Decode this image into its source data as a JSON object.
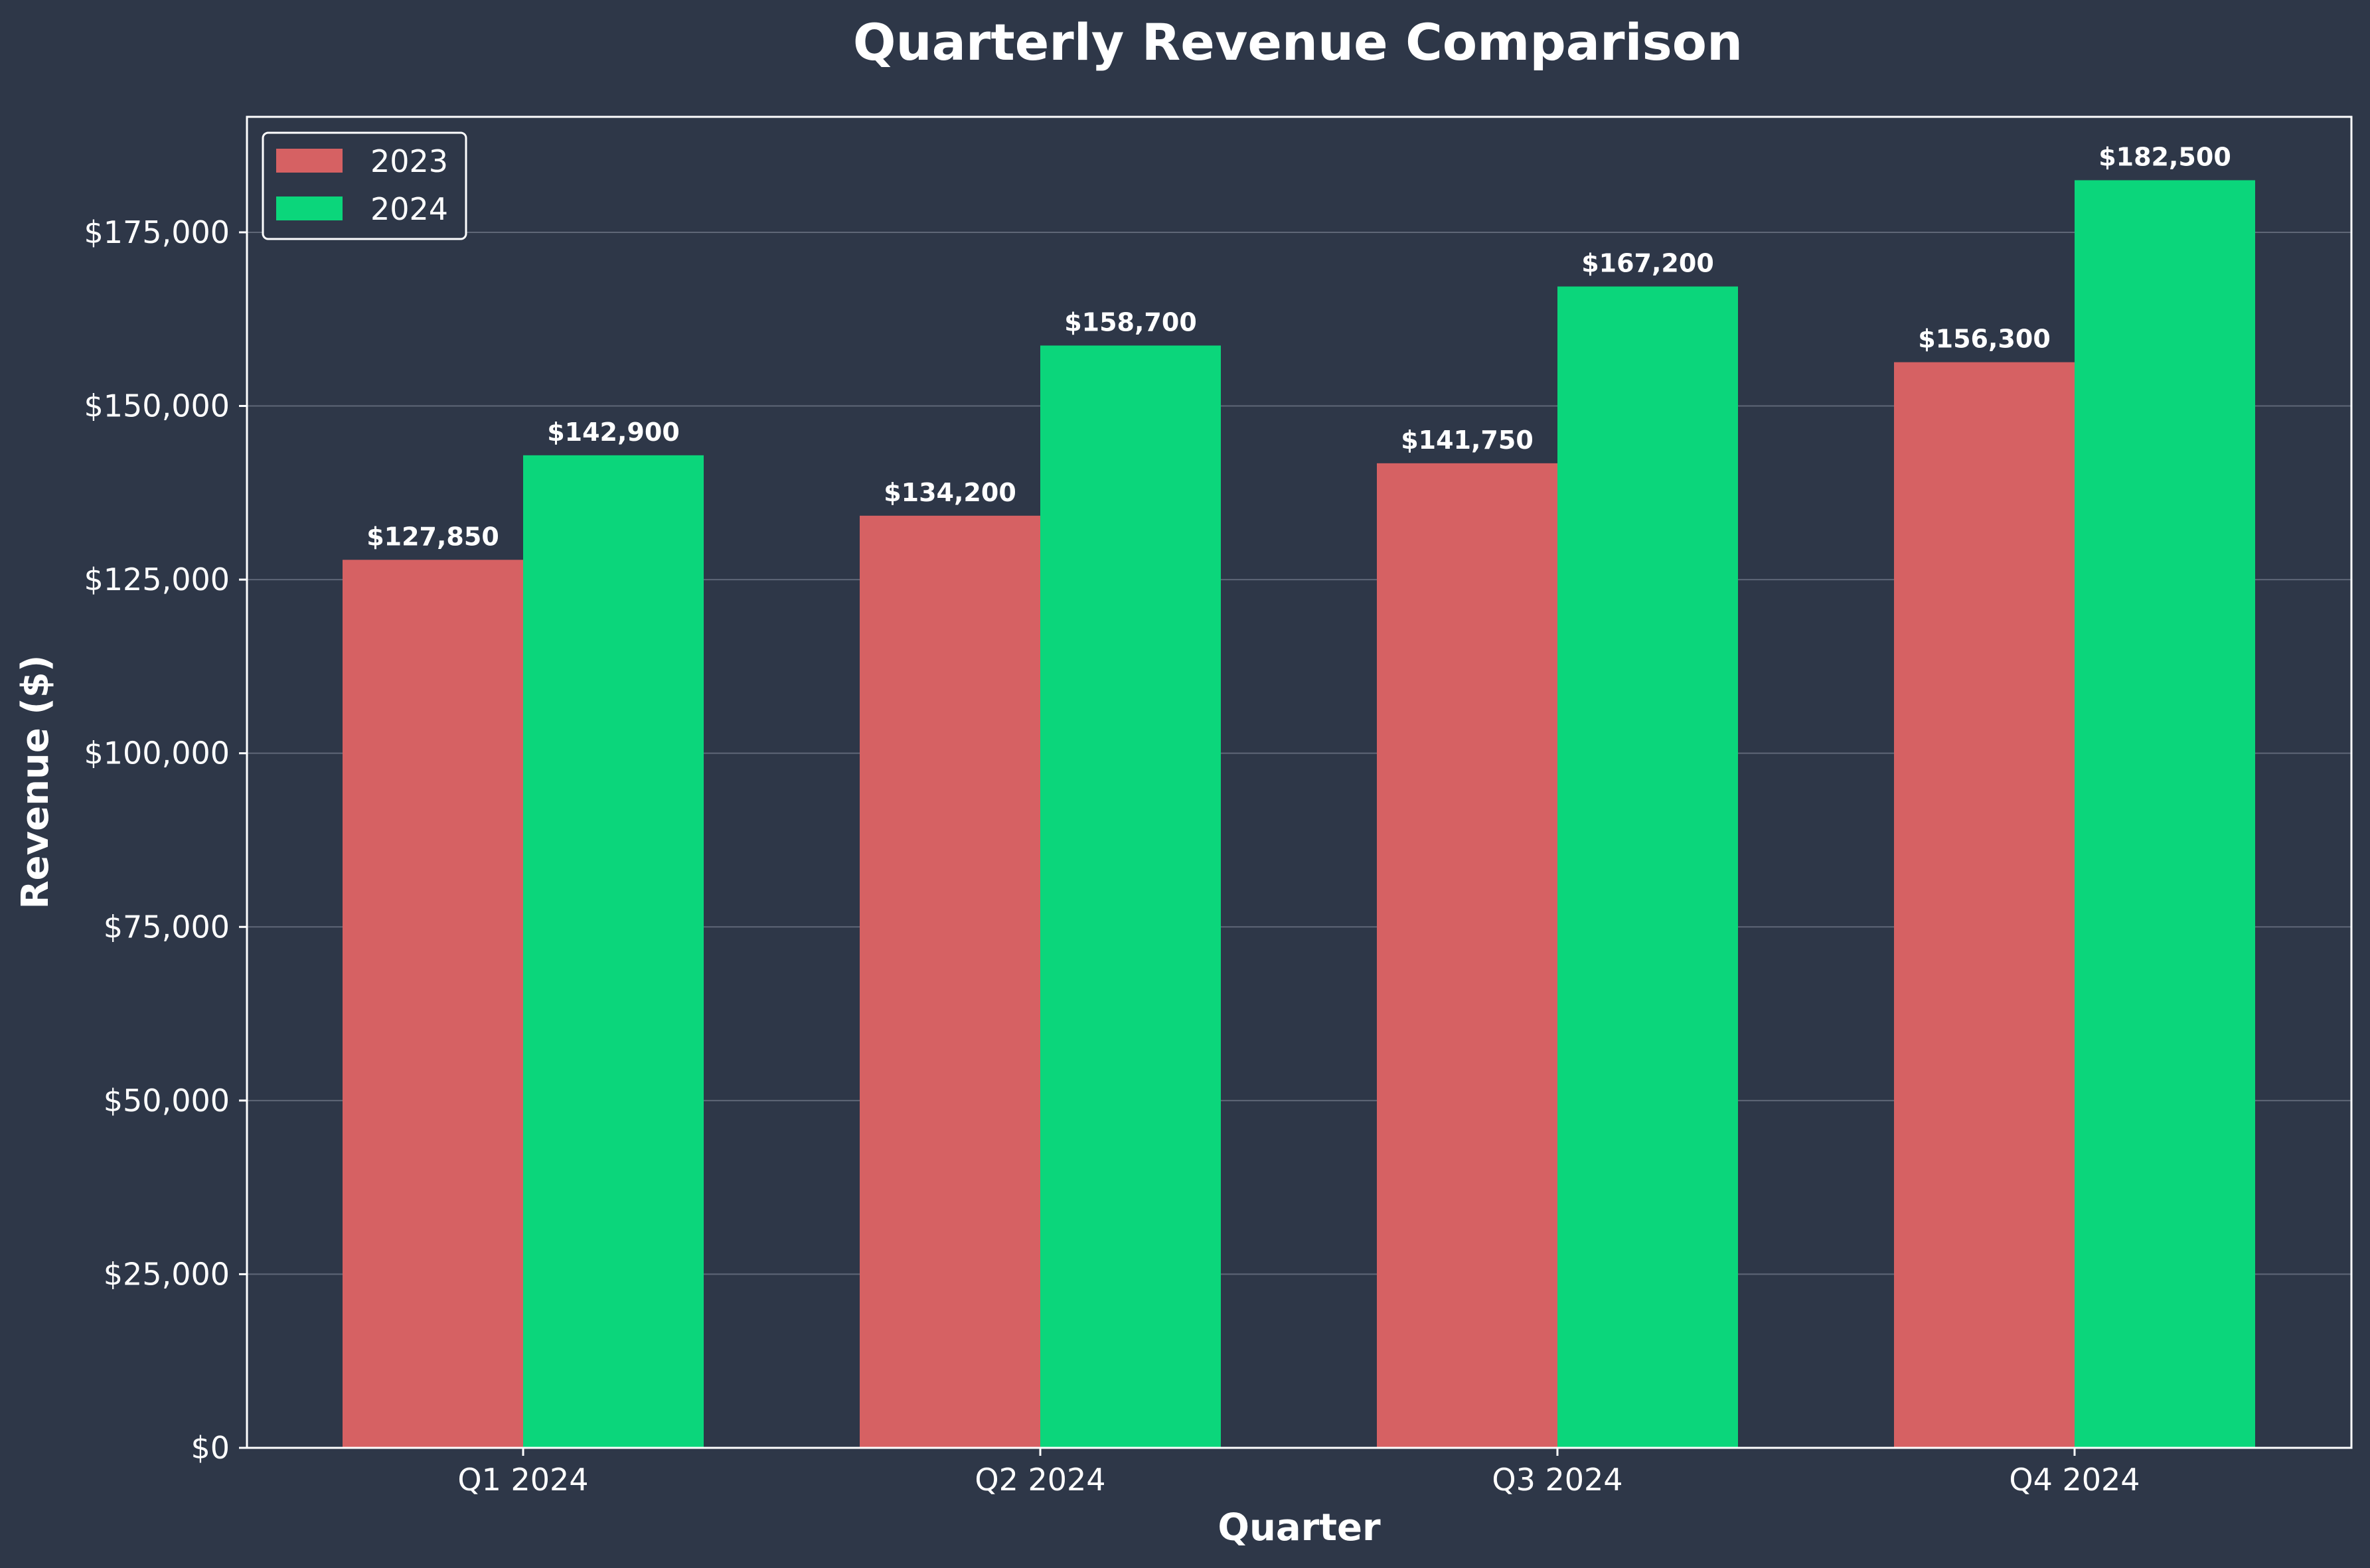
{
  "chart_data": {
    "type": "bar",
    "title": "Quarterly Revenue Comparison",
    "xlabel": "Quarter",
    "ylabel": "Revenue ($)",
    "categories": [
      "Q1 2024",
      "Q2 2024",
      "Q3 2024",
      "Q4 2024"
    ],
    "series": [
      {
        "name": "2023",
        "color": "#d66163",
        "values": [
          127850,
          134200,
          141750,
          156300
        ],
        "value_labels": [
          "$127,850",
          "$134,200",
          "$141,750",
          "$156,300"
        ]
      },
      {
        "name": "2024",
        "color": "#0bd67b",
        "values": [
          142900,
          158700,
          167200,
          182500
        ],
        "value_labels": [
          "$142,900",
          "$158,700",
          "$167,200",
          "$182,500"
        ]
      }
    ],
    "ylim": [
      0,
      191625
    ],
    "yticks": [
      0,
      25000,
      50000,
      75000,
      100000,
      125000,
      150000,
      175000
    ],
    "ytick_labels": [
      "$0",
      "$25,000",
      "$50,000",
      "$75,000",
      "$100,000",
      "$125,000",
      "$150,000",
      "$175,000"
    ],
    "grid": "horizontal",
    "legend_position": "top-left",
    "colors": {
      "background": "#2e3748",
      "axes_edge": "#ffffff",
      "grid": "#5f6777",
      "text": "#ffffff"
    }
  }
}
